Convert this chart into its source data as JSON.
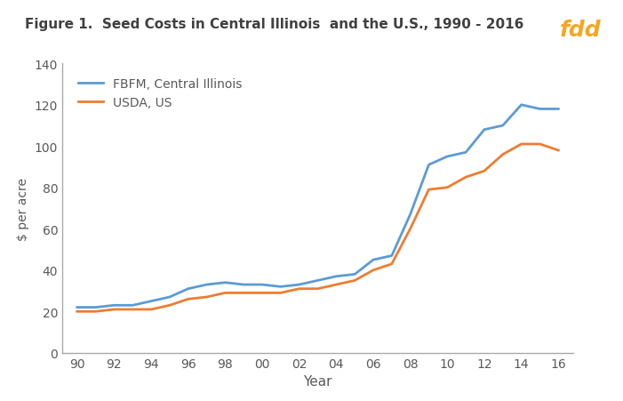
{
  "title": "Figure 1.  Seed Costs in Central Illinois  and the U.S., 1990 - 2016",
  "xlabel": "Year",
  "ylabel": "$ per acre",
  "years": [
    1990,
    1991,
    1992,
    1993,
    1994,
    1995,
    1996,
    1997,
    1998,
    1999,
    2000,
    2001,
    2002,
    2003,
    2004,
    2005,
    2006,
    2007,
    2008,
    2009,
    2010,
    2011,
    2012,
    2013,
    2014,
    2015,
    2016
  ],
  "fbfm": [
    22,
    22,
    23,
    23,
    25,
    27,
    31,
    33,
    34,
    33,
    33,
    32,
    33,
    35,
    37,
    38,
    45,
    47,
    67,
    91,
    95,
    97,
    108,
    110,
    120,
    118,
    118
  ],
  "usda": [
    20,
    20,
    21,
    21,
    21,
    23,
    26,
    27,
    29,
    29,
    29,
    29,
    31,
    31,
    33,
    35,
    40,
    43,
    60,
    79,
    80,
    85,
    88,
    96,
    101,
    101,
    98
  ],
  "fbfm_color": "#5B9BD5",
  "usda_color": "#ED7D31",
  "ylim": [
    0,
    140
  ],
  "yticks": [
    0,
    20,
    40,
    60,
    80,
    100,
    120,
    140
  ],
  "xtick_labels": [
    "90",
    "92",
    "94",
    "96",
    "98",
    "00",
    "02",
    "04",
    "06",
    "08",
    "10",
    "12",
    "14",
    "16"
  ],
  "xtick_positions": [
    1990,
    1992,
    1994,
    1996,
    1998,
    2000,
    2002,
    2004,
    2006,
    2008,
    2010,
    2012,
    2014,
    2016
  ],
  "fbfm_label": "FBFM, Central Illinois",
  "usda_label": "USDA, US",
  "line_width": 2.0,
  "background_color": "#FFFFFF",
  "logo_bg_color": "#2E3570",
  "logo_text_color": "#F5A623",
  "logo_text": "fdd",
  "title_color": "#404040",
  "tick_label_color": "#595959"
}
